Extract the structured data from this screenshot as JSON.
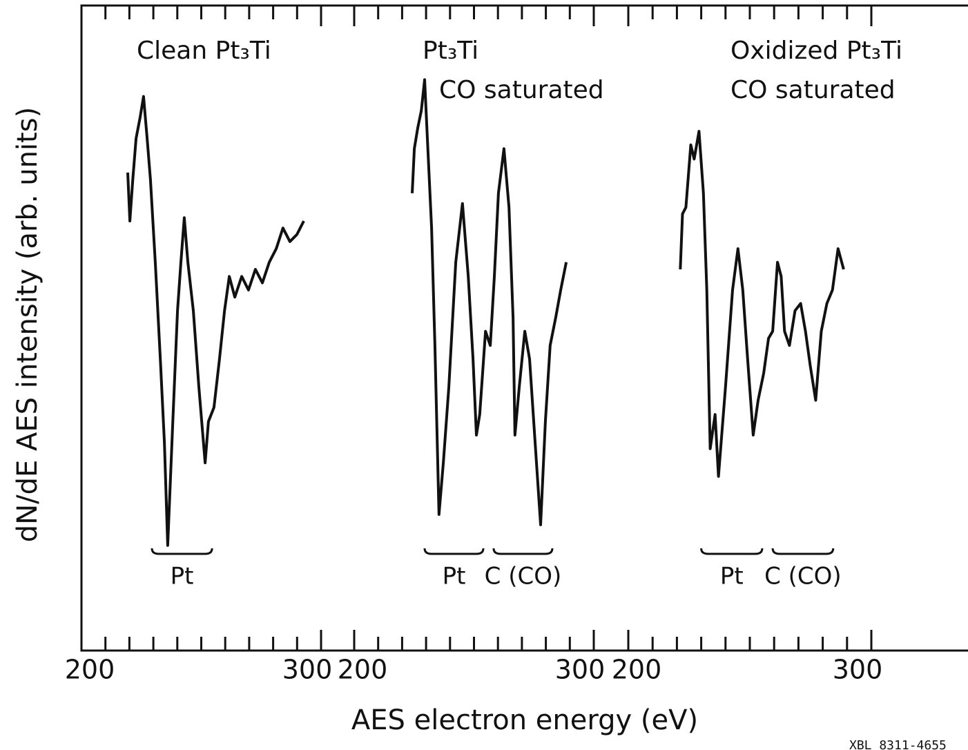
{
  "chart_data": [
    {
      "type": "line",
      "title_lines": [
        "Clean Pt₃Ti"
      ],
      "color": "#111111",
      "xlim": [
        200,
        300
      ],
      "xticks": [
        200,
        300
      ],
      "minor_xticks": [
        210,
        220,
        230,
        240,
        250,
        260,
        270,
        280,
        290
      ],
      "ylim": [
        0,
        100
      ],
      "x": [
        219.3,
        220.2,
        221.4,
        222.8,
        224.5,
        225.9,
        227.4,
        228.8,
        230.8,
        232.9,
        234.6,
        236.0,
        238.0,
        240.1,
        241.5,
        242.9,
        244.4,
        246.7,
        249.0,
        251.6,
        253.0,
        255.3,
        257.6,
        259.7,
        261.7,
        264.0,
        266.9,
        269.7,
        272.6,
        275.5,
        278.4,
        281.3,
        284.1,
        287.0,
        289.9,
        292.8
      ],
      "values": [
        74.1,
        66.6,
        73.0,
        79.4,
        82.7,
        85.9,
        79.4,
        73.0,
        60.2,
        45.2,
        32.3,
        16.3,
        34.5,
        52.7,
        60.2,
        67.1,
        60.2,
        52.7,
        40.9,
        29.1,
        35.5,
        37.7,
        45.2,
        52.7,
        58.0,
        54.8,
        58.0,
        55.9,
        59.1,
        57.0,
        60.2,
        62.3,
        65.5,
        63.4,
        64.5,
        66.6
      ],
      "annotations": [
        {
          "text": "Pt",
          "span": [
            229.4,
            254.5
          ]
        }
      ]
    },
    {
      "type": "line",
      "title_lines": [
        "Pt₃Ti",
        "CO saturated"
      ],
      "color": "#111111",
      "xlim": [
        200,
        300
      ],
      "xticks": [
        200,
        300
      ],
      "minor_xticks": [
        210,
        220,
        230,
        240,
        250,
        260,
        270,
        280,
        290
      ],
      "ylim": [
        0,
        100
      ],
      "x": [
        224.2,
        225.1,
        226.5,
        228.0,
        229.4,
        230.8,
        232.3,
        233.7,
        235.4,
        237.2,
        239.5,
        242.4,
        245.2,
        247.6,
        249.6,
        251.0,
        252.4,
        254.8,
        256.8,
        258.5,
        260.2,
        262.5,
        264.6,
        266.3,
        267.1,
        268.9,
        271.2,
        273.2,
        275.5,
        277.8,
        279.8,
        281.8,
        284.1,
        286.2,
        288.5
      ],
      "values": [
        70.9,
        77.8,
        81.0,
        83.7,
        88.5,
        77.3,
        65.5,
        47.3,
        21.1,
        29.1,
        40.9,
        60.2,
        69.3,
        58.0,
        45.2,
        33.4,
        36.6,
        49.5,
        47.3,
        58.0,
        70.9,
        77.8,
        68.7,
        51.6,
        33.4,
        40.9,
        49.5,
        45.2,
        32.3,
        19.5,
        35.5,
        47.3,
        51.6,
        55.9,
        60.2
      ],
      "annotations": [
        {
          "text": "Pt",
          "span": [
            229.4,
            253.9
          ]
        },
        {
          "text": "C (CO)",
          "span": [
            258.2,
            282.7
          ]
        }
      ]
    },
    {
      "type": "line",
      "title_lines": [
        "Oxidized Pt₃Ti",
        "CO saturated"
      ],
      "color": "#111111",
      "xlim": [
        200,
        300
      ],
      "xticks": [
        200,
        300
      ],
      "minor_xticks": [
        210,
        220,
        230,
        240,
        250,
        260,
        270,
        280,
        290
      ],
      "ylim": [
        0,
        100
      ],
      "x": [
        221.4,
        222.3,
        223.7,
        225.7,
        227.1,
        229.1,
        230.9,
        232.3,
        233.7,
        235.7,
        237.1,
        240.0,
        242.9,
        245.1,
        247.1,
        249.1,
        251.4,
        253.4,
        255.7,
        257.7,
        259.4,
        261.4,
        262.9,
        264.3,
        266.3,
        268.6,
        270.9,
        272.9,
        274.9,
        277.1,
        279.4,
        281.7,
        284.0,
        286.3,
        288.6
      ],
      "values": [
        59.1,
        67.7,
        68.7,
        78.4,
        76.2,
        80.5,
        70.9,
        55.9,
        31.3,
        36.6,
        27.0,
        40.9,
        55.9,
        62.3,
        55.9,
        45.2,
        33.4,
        38.8,
        43.0,
        48.4,
        49.5,
        60.2,
        58.0,
        49.5,
        47.3,
        52.7,
        53.8,
        49.5,
        44.1,
        38.8,
        49.5,
        53.8,
        55.9,
        62.3,
        59.1
      ],
      "annotations": [
        {
          "text": "Pt",
          "span": [
            230.0,
            255.1
          ]
        },
        {
          "text": "C (CO)",
          "span": [
            259.4,
            284.3
          ]
        }
      ]
    }
  ],
  "x_label": "AES electron energy (eV)",
  "y_label": "dN/dE AES intensity (arb. units)",
  "figure_code": "XBL 8311-4655"
}
